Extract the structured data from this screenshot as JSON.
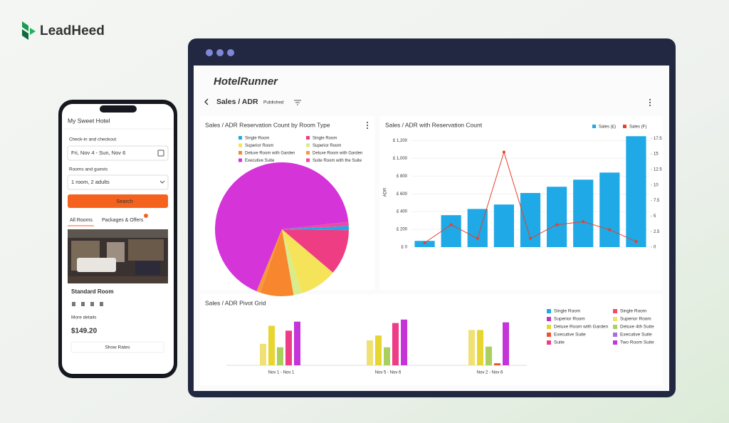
{
  "brand": "LeadHeed",
  "phone": {
    "hotel": "My Sweet Hotel",
    "dates_label": "Check-in and checkout",
    "dates": "Fri, Nov 4 - Sun, Nov 6",
    "rooms_label": "Rooms and guests",
    "rooms": "1 room, 2 adults",
    "search": "Search",
    "tabs": [
      "All Rooms",
      "Packages & Offers"
    ],
    "room": "Standard Room",
    "more": "More details",
    "price": "$149.20",
    "button": "Show Rates"
  },
  "dashboard": {
    "logo": "HotelRunner",
    "title": "Sales / ADR",
    "status": "Published"
  },
  "chart_data": [
    {
      "type": "pie",
      "title": "Sales / ADR Reservation Count by Room Type",
      "categories": [
        "Single Room",
        "Single Room",
        "Superior Room",
        "Superior Room",
        "Deluxe Room with Garden",
        "Deluxe Room with Garden",
        "Executive Suite",
        "Suite Room with the Suite"
      ],
      "values": [
        1,
        11,
        9,
        2,
        8,
        1,
        67,
        1
      ],
      "colors": [
        "#1fa9e6",
        "#ef3d83",
        "#f5e35a",
        "#d9ec8c",
        "#f7862f",
        "#f59a3c",
        "#d534d8",
        "#ea4aa6"
      ]
    },
    {
      "type": "bar",
      "title": "Sales / ADR with Reservation Count",
      "ylabel": "ADR",
      "categories": [
        null,
        null,
        null,
        null,
        null,
        null,
        null,
        null,
        null
      ],
      "series": [
        {
          "name": "Sales (£)",
          "color": "#1fa9e6",
          "values": [
            70,
            360,
            430,
            480,
            610,
            680,
            760,
            840,
            1250
          ]
        },
        {
          "name": "Sales (F)",
          "color": "#e8402a",
          "type": "line",
          "axis": "y2",
          "values": [
            0.7,
            3.6,
            1.4,
            15.3,
            1.4,
            3.6,
            4.1,
            2.8,
            0.9
          ]
        }
      ],
      "ylim": [
        0,
        1260
      ],
      "yticks": [
        {
          "value": 0,
          "label": "£ 0"
        },
        {
          "value": 200,
          "label": "£ 200"
        },
        {
          "value": 400,
          "label": "£ 400"
        },
        {
          "value": 600,
          "label": "£ 600"
        },
        {
          "value": 800,
          "label": "£ 800"
        },
        {
          "value": 1000,
          "label": "£ 1,000"
        },
        {
          "value": 1200,
          "label": "£ 1,200"
        }
      ],
      "y2lim": [
        0,
        18
      ],
      "y2ticks": [
        0,
        2.5,
        5,
        7.5,
        10,
        12.5,
        15,
        17.5
      ]
    },
    {
      "type": "grouped-bar",
      "title": "Sales / ADR Pivot Grid",
      "categories": [
        "Nov 1 - Nov 1",
        "Nov 5 - Nov 6",
        "Nov 2 - Nov 6"
      ],
      "ylim": [
        0,
        75
      ],
      "series": [
        {
          "name": "Single Room",
          "color": "#1fa9e6",
          "values": [
            null,
            null,
            null
          ]
        },
        {
          "name": "Single Room",
          "color": "#ef4a6a",
          "values": [
            null,
            null,
            null
          ]
        },
        {
          "name": "Superior Room",
          "color": "#c532c8",
          "values": [
            null,
            null,
            null
          ]
        },
        {
          "name": "Superior Room",
          "color": "#f1e074",
          "values": [
            31,
            36,
            51
          ]
        },
        {
          "name": "Deluxe Room with Garden",
          "color": "#e7d531",
          "values": [
            57,
            43,
            51
          ]
        },
        {
          "name": "Deluxe 4th Suite",
          "color": "#a9cf5f",
          "values": [
            26,
            26,
            27
          ]
        },
        {
          "name": "Executive Suite",
          "color": "#f0522e",
          "values": [
            null,
            null,
            3
          ]
        },
        {
          "name": "Executive Suite",
          "color": "#a66ee0",
          "values": [
            null,
            null,
            null
          ]
        },
        {
          "name": "Suite",
          "color": "#ee3c86",
          "values": [
            50,
            61,
            null
          ]
        },
        {
          "name": "Two Room Suite",
          "color": "#c534d8",
          "values": [
            63,
            66,
            62
          ]
        }
      ]
    }
  ]
}
